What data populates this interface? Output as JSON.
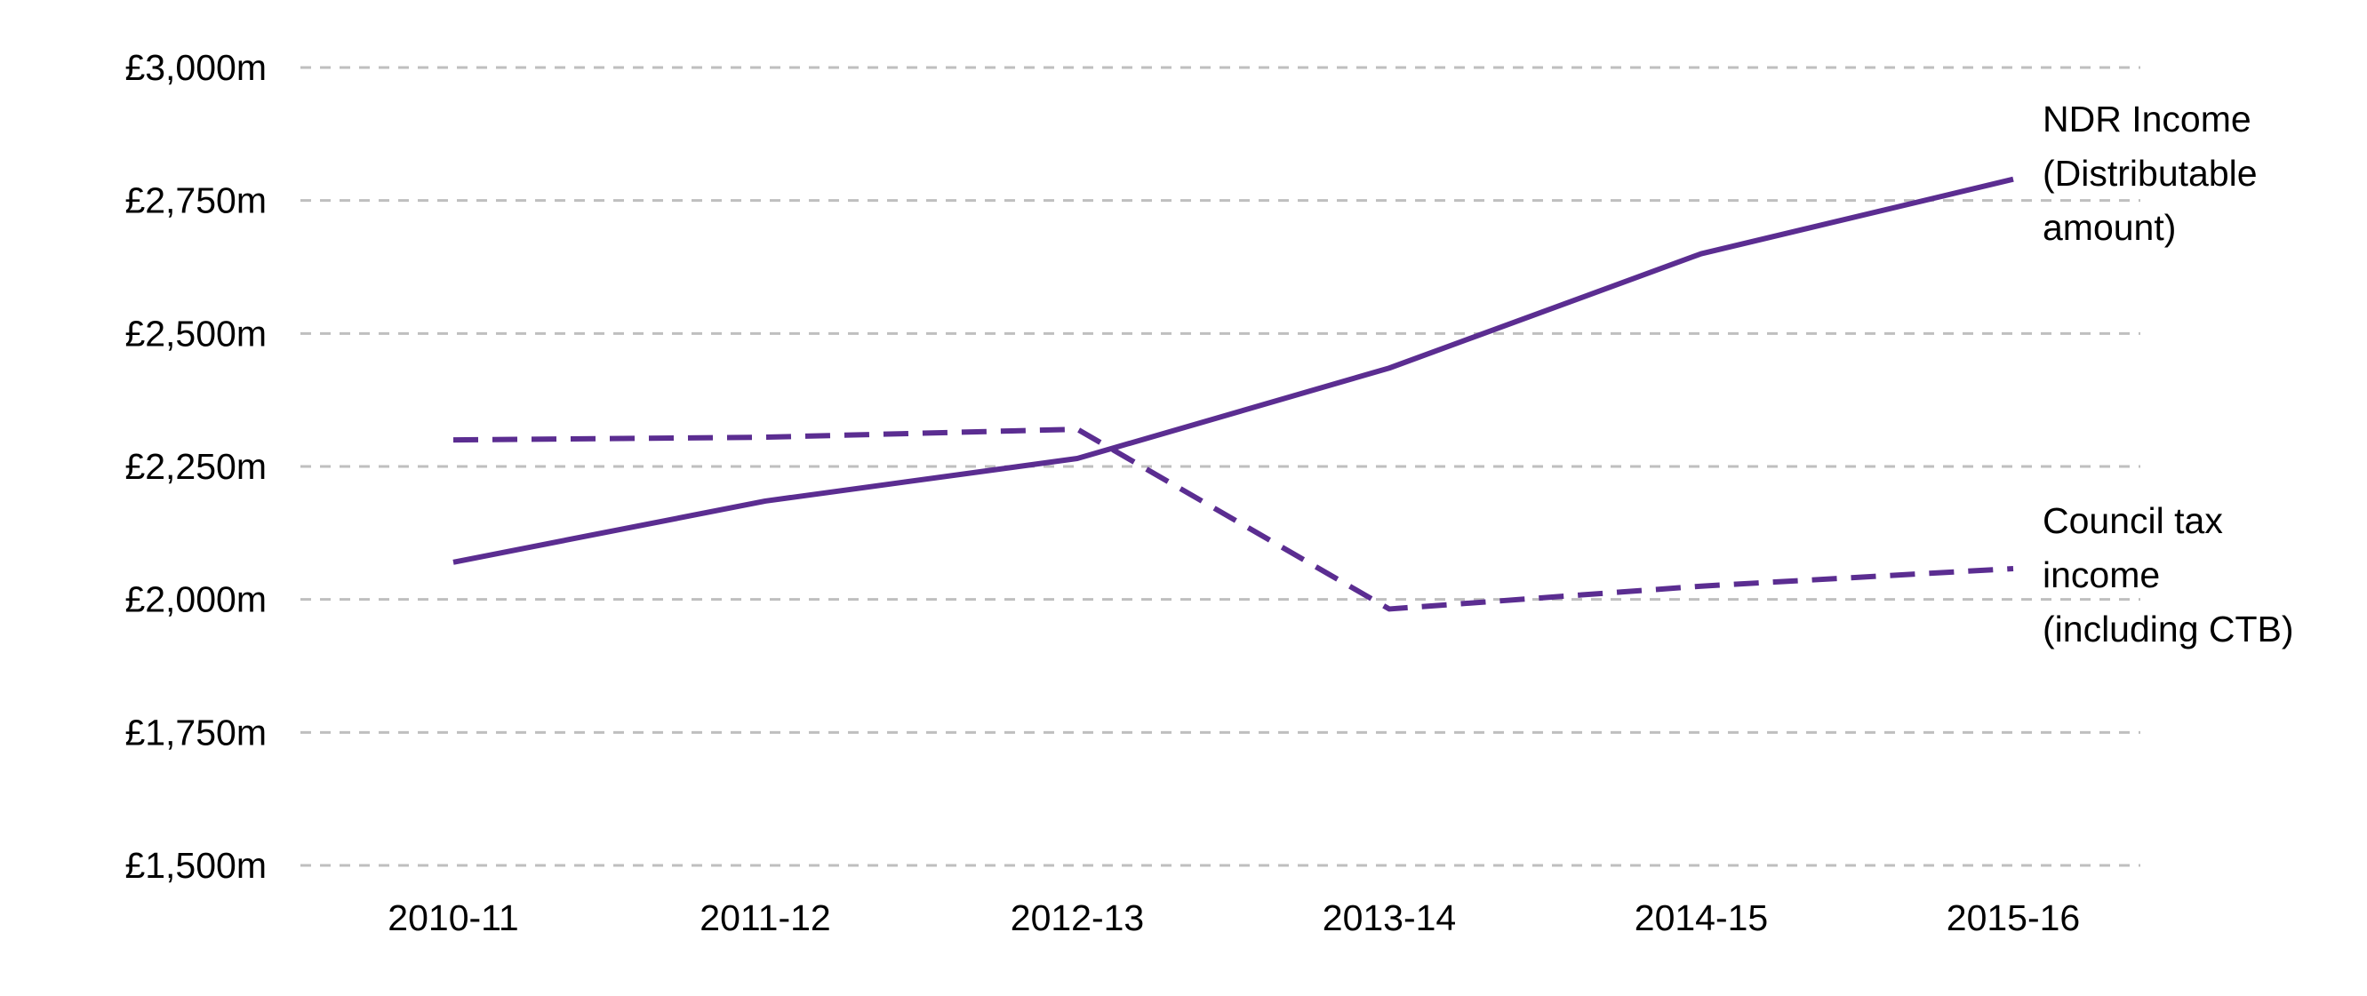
{
  "chart_data": {
    "type": "line",
    "title": "",
    "xlabel": "",
    "ylabel": "",
    "categories": [
      "2010-11",
      "2011-12",
      "2012-13",
      "2013-14",
      "2014-15",
      "2015-16"
    ],
    "y_ticks": [
      "£1,500m",
      "£1,750m",
      "£2,000m",
      "£2,250m",
      "£2,500m",
      "£2,750m",
      "£3,000m"
    ],
    "ylim": [
      1500,
      3000
    ],
    "y_tick_values": [
      1500,
      1750,
      2000,
      2250,
      2500,
      2750,
      3000
    ],
    "grid": "horizontal dashed",
    "legend": "direct labels at right end of each line",
    "series": [
      {
        "name": "NDR Income (Distributable amount)",
        "label_lines": [
          "NDR Income",
          "(Distributable",
          "amount)"
        ],
        "style": "solid",
        "color": "#5b2d91",
        "values": [
          2070,
          2185,
          2265,
          2435,
          2650,
          2790
        ]
      },
      {
        "name": "Council tax income (including CTB)",
        "label_lines": [
          "Council tax",
          "income",
          "(including CTB)"
        ],
        "style": "dashed",
        "color": "#5b2d91",
        "values": [
          2300,
          2305,
          2320,
          1982,
          2025,
          2058
        ]
      }
    ]
  }
}
